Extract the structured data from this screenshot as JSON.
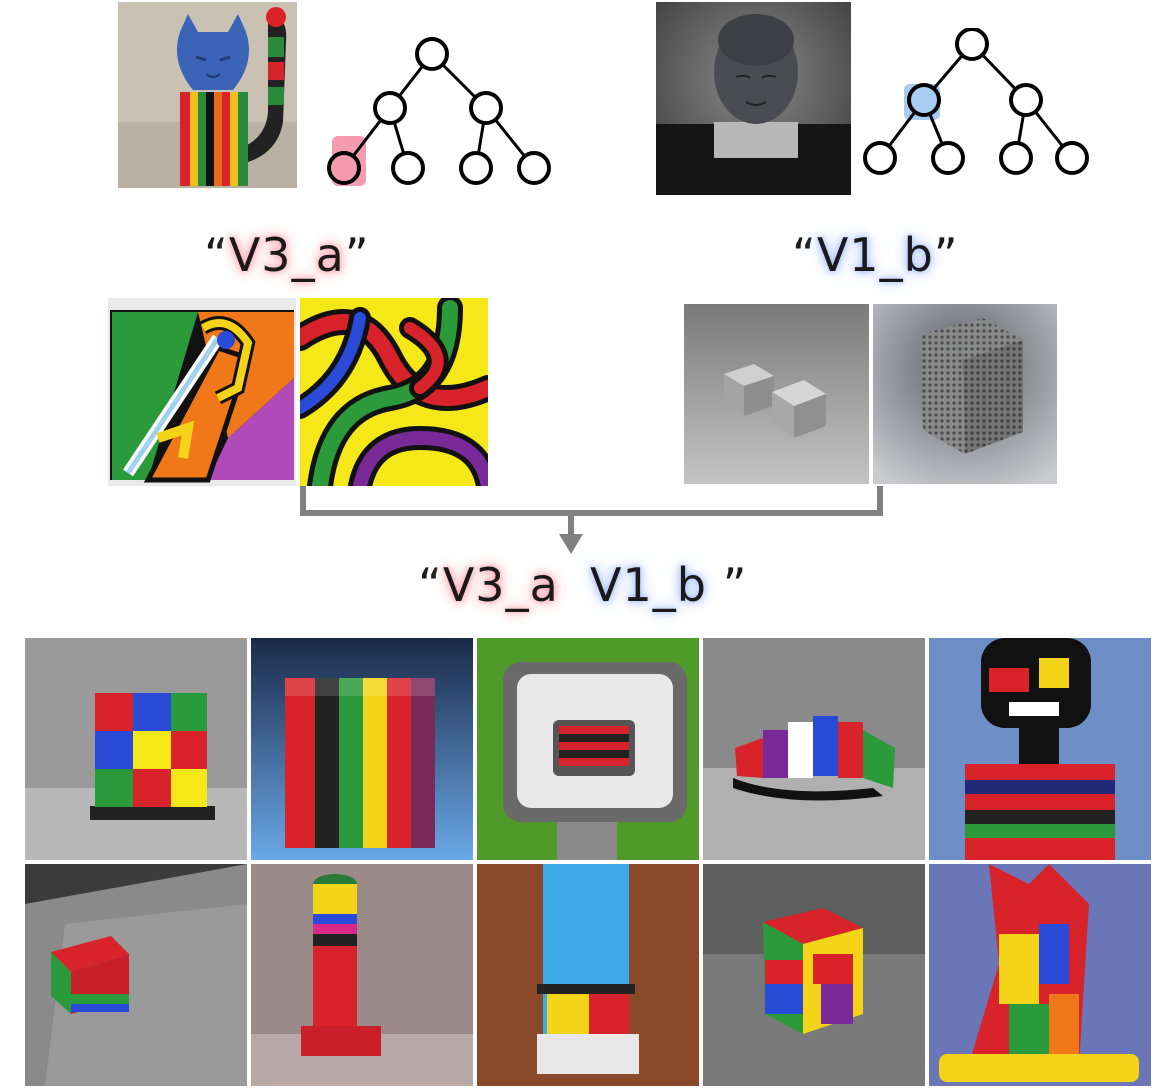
{
  "concepts": [
    {
      "token": "V3_a",
      "glow": "#ff9aa8",
      "highlight_node": "left-leaf-1"
    },
    {
      "token": "V1_b",
      "glow": "#9cb8ff",
      "highlight_node": "left-inner"
    }
  ],
  "labels": {
    "first_open": "“",
    "first_token": "V3_a",
    "first_close": "”",
    "second_open": "“",
    "second_token": "V1_b",
    "second_close": "”",
    "combo_open": "“",
    "combo_token_a": "V3_a",
    "combo_token_b": "V1_b",
    "combo_close": "”"
  },
  "colors": {
    "red_highlight": "#f49bb0",
    "blue_highlight": "#a9cdf0",
    "arrow": "#808080",
    "tree_stroke": "#000000"
  }
}
